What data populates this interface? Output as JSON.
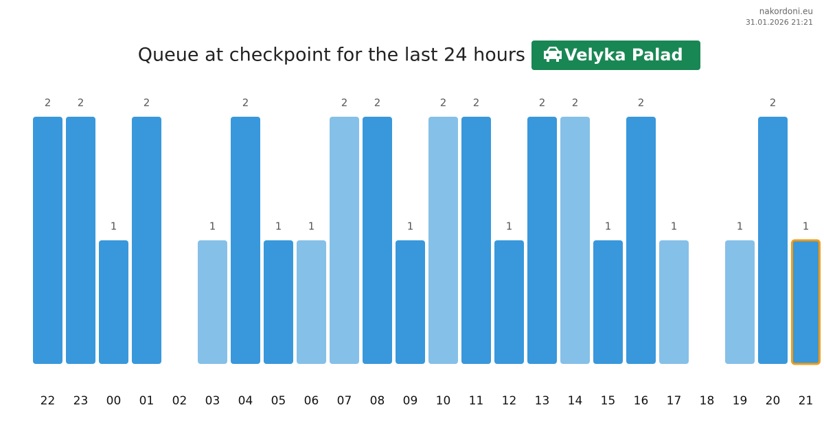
{
  "chart_data": {
    "type": "bar",
    "title": "Queue at checkpoint for the last 24 hours",
    "badge": "Velyka Palad",
    "source": "nakordoni.eu",
    "timestamp": "31.01.2026 21:21",
    "categories": [
      "22",
      "23",
      "00",
      "01",
      "02",
      "03",
      "04",
      "05",
      "06",
      "07",
      "08",
      "09",
      "10",
      "11",
      "12",
      "13",
      "14",
      "15",
      "16",
      "17",
      "18",
      "19",
      "20",
      "21"
    ],
    "values": [
      2,
      2,
      1,
      2,
      null,
      1,
      2,
      1,
      1,
      2,
      2,
      1,
      2,
      2,
      1,
      2,
      2,
      1,
      2,
      1,
      null,
      1,
      2,
      1
    ],
    "colors": [
      "#3898db",
      "#3898db",
      "#3898db",
      "#3898db",
      "#3898db",
      "#85c0e8",
      "#3898db",
      "#3898db",
      "#85c0e8",
      "#85c0e8",
      "#3898db",
      "#3898db",
      "#85c0e8",
      "#3898db",
      "#3898db",
      "#3898db",
      "#85c0e8",
      "#3898db",
      "#3898db",
      "#85c0e8",
      "#3898db",
      "#85c0e8",
      "#3898db",
      "#3898db"
    ],
    "highlight_index": 23,
    "highlight_color": "#f39c12",
    "ylim": [
      0,
      2
    ]
  }
}
